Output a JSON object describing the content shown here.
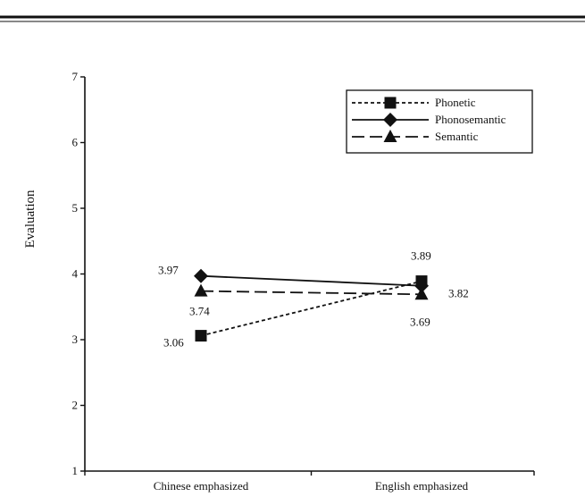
{
  "chart_data": {
    "type": "line",
    "title": "",
    "xlabel": "",
    "ylabel": "Evaluation",
    "categories": [
      "Chinese emphasized",
      "English emphasized"
    ],
    "ylim": [
      1,
      7
    ],
    "yticks": [
      "1",
      "2",
      "3",
      "4",
      "5",
      "6",
      "7"
    ],
    "grid": false,
    "legend_position": "top-right",
    "series": [
      {
        "name": "Phonetic",
        "values": [
          3.06,
          3.89
        ],
        "labels": [
          "3.06",
          "3.89"
        ],
        "marker": "square",
        "line_style": "dotted",
        "color": "#111111"
      },
      {
        "name": "Phonosemantic",
        "values": [
          3.97,
          3.82
        ],
        "labels": [
          "3.97",
          "3.82"
        ],
        "marker": "diamond",
        "line_style": "solid",
        "color": "#111111"
      },
      {
        "name": "Semantic",
        "values": [
          3.74,
          3.69
        ],
        "labels": [
          "3.74",
          "3.69"
        ],
        "marker": "triangle",
        "line_style": "dashed",
        "color": "#111111"
      }
    ]
  }
}
